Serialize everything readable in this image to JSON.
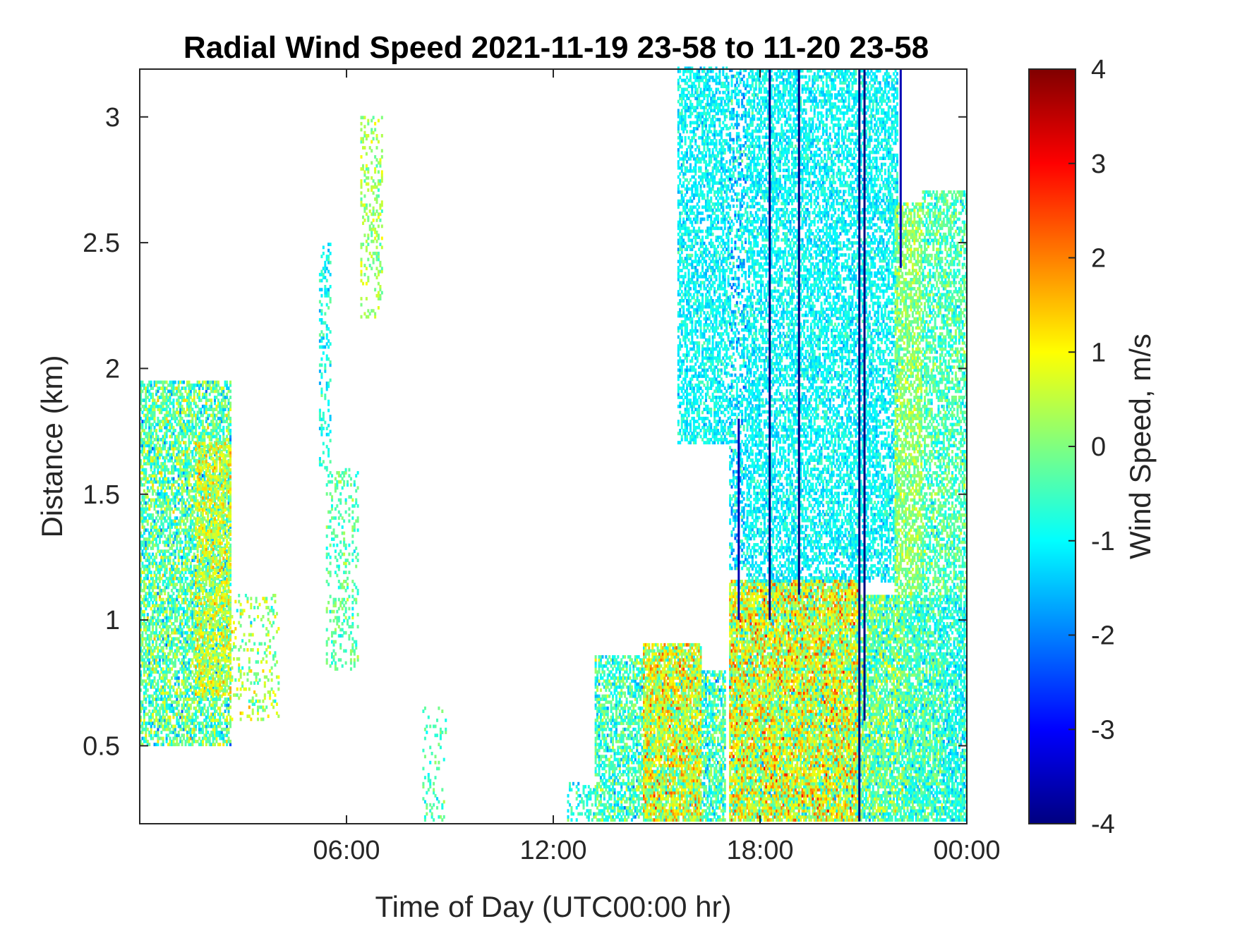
{
  "chart_data": {
    "type": "heatmap",
    "title": "Radial Wind Speed 2021-11-19 23-58 to 11-20 23-58",
    "xlabel": "Time of Day (UTC00:00 hr)",
    "ylabel": "Distance (km)",
    "colorbar_label": "Wind Speed, m/s",
    "colormap": "jet",
    "xlim_hours": [
      0,
      24
    ],
    "ylim_km": [
      0.19,
      3.19
    ],
    "clim": [
      -4,
      4
    ],
    "x_ticks": [
      {
        "value": 6,
        "label": "06:00"
      },
      {
        "value": 12,
        "label": "12:00"
      },
      {
        "value": 18,
        "label": "18:00"
      },
      {
        "value": 24,
        "label": "00:00"
      }
    ],
    "y_ticks": [
      {
        "value": 0.5,
        "label": "0.5"
      },
      {
        "value": 1,
        "label": "1"
      },
      {
        "value": 1.5,
        "label": "1.5"
      },
      {
        "value": 2,
        "label": "2"
      },
      {
        "value": 2.5,
        "label": "2.5"
      },
      {
        "value": 3,
        "label": "3"
      }
    ],
    "colorbar_ticks": [
      {
        "value": 4,
        "label": "4"
      },
      {
        "value": 3,
        "label": "3"
      },
      {
        "value": 2,
        "label": "2"
      },
      {
        "value": 1,
        "label": "1"
      },
      {
        "value": 0,
        "label": "0"
      },
      {
        "value": -1,
        "label": "-1"
      },
      {
        "value": -2,
        "label": "-2"
      },
      {
        "value": -3,
        "label": "-3"
      },
      {
        "value": -4,
        "label": "-4"
      }
    ],
    "regions": [
      {
        "t0": 0.0,
        "t1": 2.6,
        "d0": 0.5,
        "d1": 1.95,
        "mean": -0.3,
        "spread": 1.1,
        "density": 0.65
      },
      {
        "t0": 1.6,
        "t1": 2.6,
        "d0": 0.7,
        "d1": 1.7,
        "mean": 0.7,
        "spread": 0.8,
        "density": 0.5
      },
      {
        "t0": 2.6,
        "t1": 4.0,
        "d0": 0.6,
        "d1": 1.1,
        "mean": 0.2,
        "spread": 0.9,
        "density": 0.18
      },
      {
        "t0": 5.2,
        "t1": 5.5,
        "d0": 1.6,
        "d1": 2.5,
        "mean": -0.9,
        "spread": 0.6,
        "density": 0.28
      },
      {
        "t0": 5.4,
        "t1": 6.3,
        "d0": 0.8,
        "d1": 1.6,
        "mean": -0.3,
        "spread": 0.6,
        "density": 0.22
      },
      {
        "t0": 6.4,
        "t1": 7.0,
        "d0": 2.2,
        "d1": 3.0,
        "mean": 0.2,
        "spread": 0.6,
        "density": 0.25
      },
      {
        "t0": 8.2,
        "t1": 8.9,
        "d0": 0.2,
        "d1": 0.65,
        "mean": -0.4,
        "spread": 0.6,
        "density": 0.15
      },
      {
        "t0": 12.4,
        "t1": 13.2,
        "d0": 0.2,
        "d1": 0.35,
        "mean": -0.7,
        "spread": 0.7,
        "density": 0.35
      },
      {
        "t0": 13.2,
        "t1": 14.6,
        "d0": 0.2,
        "d1": 0.85,
        "mean": -0.5,
        "spread": 0.9,
        "density": 0.62
      },
      {
        "t0": 14.6,
        "t1": 16.3,
        "d0": 0.2,
        "d1": 0.9,
        "mean": 0.6,
        "spread": 1.3,
        "density": 0.88
      },
      {
        "t0": 16.3,
        "t1": 17.0,
        "d0": 0.2,
        "d1": 0.8,
        "mean": -0.5,
        "spread": 1.0,
        "density": 0.7
      },
      {
        "t0": 15.6,
        "t1": 17.1,
        "d0": 1.7,
        "d1": 3.19,
        "mean": -1.0,
        "spread": 0.5,
        "density": 0.55
      },
      {
        "t0": 17.1,
        "t1": 17.6,
        "d0": 1.2,
        "d1": 3.19,
        "mean": -1.2,
        "spread": 0.8,
        "density": 0.45
      },
      {
        "t0": 17.1,
        "t1": 20.9,
        "d0": 0.2,
        "d1": 1.15,
        "mean": 0.6,
        "spread": 1.4,
        "density": 0.9
      },
      {
        "t0": 17.6,
        "t1": 22.0,
        "d0": 1.15,
        "d1": 3.19,
        "mean": -1.0,
        "spread": 0.5,
        "density": 0.55
      },
      {
        "t0": 20.8,
        "t1": 22.2,
        "d0": 0.2,
        "d1": 1.1,
        "mean": -0.2,
        "spread": 1.0,
        "density": 0.8
      },
      {
        "t0": 22.2,
        "t1": 23.3,
        "d0": 0.2,
        "d1": 1.1,
        "mean": -0.5,
        "spread": 0.8,
        "density": 0.78
      },
      {
        "t0": 21.9,
        "t1": 22.7,
        "d0": 1.1,
        "d1": 2.65,
        "mean": 0.1,
        "spread": 0.6,
        "density": 0.65
      },
      {
        "t0": 22.7,
        "t1": 24.0,
        "d0": 1.1,
        "d1": 2.7,
        "mean": -0.4,
        "spread": 0.7,
        "density": 0.55
      },
      {
        "t0": 23.3,
        "t1": 24.0,
        "d0": 0.2,
        "d1": 1.1,
        "mean": -0.8,
        "spread": 0.7,
        "density": 0.7
      }
    ],
    "dark_streaks": [
      {
        "t": 18.25,
        "d0": 1.0,
        "d1": 3.19,
        "value": -4
      },
      {
        "t": 19.1,
        "d0": 1.1,
        "d1": 3.19,
        "value": -4
      },
      {
        "t": 20.85,
        "d0": 0.2,
        "d1": 3.19,
        "value": -4
      },
      {
        "t": 21.0,
        "d0": 0.6,
        "d1": 3.19,
        "value": -4
      },
      {
        "t": 17.35,
        "d0": 1.0,
        "d1": 1.8,
        "value": -3.6
      },
      {
        "t": 22.05,
        "d0": 2.4,
        "d1": 3.19,
        "value": -3.6
      }
    ]
  }
}
